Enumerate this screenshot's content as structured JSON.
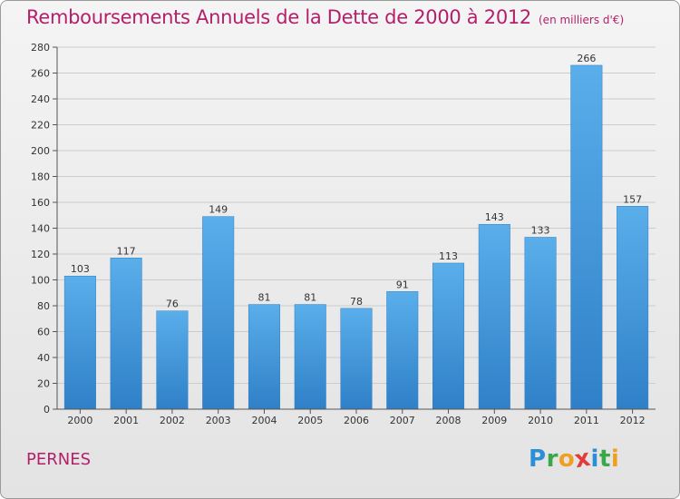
{
  "title": "Remboursements Annuels de la Dette de 2000 à 2012",
  "subtitle": "(en milliers d'€)",
  "place": "PERNES",
  "logo": {
    "letters": [
      "P",
      "r",
      "o",
      "x",
      "i",
      "t",
      "i"
    ],
    "colors": [
      "#2a8fd8",
      "#3aa84a",
      "#f0a020",
      "#e23b3b",
      "#2a8fd8",
      "#3aa84a",
      "#f0a020"
    ]
  },
  "colors": {
    "bar": "#4a9fe0",
    "title": "#b31f6a",
    "axis": "#555555",
    "grid": "#cccccc"
  },
  "chart_data": {
    "type": "bar",
    "categories": [
      "2000",
      "2001",
      "2002",
      "2003",
      "2004",
      "2005",
      "2006",
      "2007",
      "2008",
      "2009",
      "2010",
      "2011",
      "2012"
    ],
    "values": [
      103,
      117,
      76,
      149,
      81,
      81,
      78,
      91,
      113,
      143,
      133,
      266,
      157
    ],
    "ylim": [
      0,
      280
    ],
    "yticks": [
      0,
      20,
      40,
      60,
      80,
      100,
      120,
      140,
      160,
      180,
      200,
      220,
      240,
      260,
      280
    ],
    "grid": true,
    "data_labels": true
  }
}
